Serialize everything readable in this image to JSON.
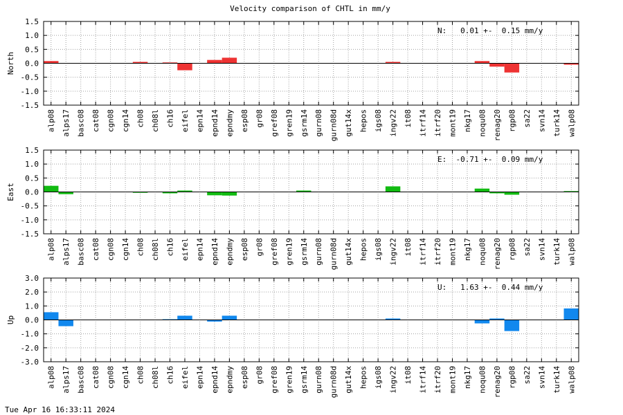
{
  "chart_data": {
    "type": "bar",
    "title": "Velocity comparison of CHTL in mm/y",
    "categories": [
      "alp08",
      "alps17",
      "basc08",
      "cat08",
      "cgn08",
      "cgn14",
      "ch08",
      "ch08l",
      "ch16",
      "eifel",
      "epn14",
      "epnd14",
      "epndmy",
      "esp08",
      "gr08",
      "gref08",
      "gren19",
      "gsrm14",
      "gurn08",
      "gurn08d",
      "gut14x",
      "hepos",
      "igs08",
      "ingv22",
      "it08",
      "itrf14",
      "itrf20",
      "mont19",
      "nkg17",
      "noqu08",
      "renag20",
      "rgp08",
      "sa22",
      "svn14",
      "turk14",
      "walp08"
    ],
    "panels": [
      {
        "name": "North",
        "ylabel": "North",
        "color": "#ee3333",
        "ylim": [
          -1.5,
          1.5
        ],
        "yticks": [
          "1.5",
          "1.0",
          "0.5",
          "0.0",
          "-0.5",
          "-1.0",
          "-1.5"
        ],
        "ytick_values": [
          1.5,
          1.0,
          0.5,
          0.0,
          -0.5,
          -1.0,
          -1.5
        ],
        "stat": "N:   0.01 +-  0.15 mm/y",
        "values": [
          0.08,
          0,
          0,
          0,
          0,
          0,
          0.05,
          0,
          0.03,
          -0.25,
          0,
          0.12,
          0.2,
          0,
          0,
          0,
          0,
          0,
          0,
          0,
          0,
          0,
          0,
          0.05,
          0,
          0,
          0,
          0,
          0,
          0.08,
          -0.12,
          -0.33,
          0,
          0,
          0,
          -0.05
        ]
      },
      {
        "name": "East",
        "ylabel": "East",
        "color": "#11bb11",
        "ylim": [
          -1.5,
          1.5
        ],
        "yticks": [
          "1.5",
          "1.0",
          "0.5",
          "0.0",
          "-0.5",
          "-1.0",
          "-1.5"
        ],
        "ytick_values": [
          1.5,
          1.0,
          0.5,
          0.0,
          -0.5,
          -1.0,
          -1.5
        ],
        "stat": "E:  -0.71 +-  0.09 mm/y",
        "values": [
          0.22,
          -0.08,
          0,
          0,
          0,
          0,
          -0.03,
          0,
          -0.05,
          0.05,
          0,
          -0.12,
          -0.13,
          0,
          0,
          0,
          0,
          0.05,
          0,
          0,
          0,
          0,
          0,
          0.2,
          0,
          0,
          0,
          0,
          0,
          0.12,
          -0.05,
          -0.1,
          0,
          0,
          0,
          0.03
        ]
      },
      {
        "name": "Up",
        "ylabel": "Up",
        "color": "#1188ee",
        "ylim": [
          -3.0,
          3.0
        ],
        "yticks": [
          "3.0",
          "2.0",
          "1.0",
          "0.0",
          "-1.0",
          "-2.0",
          "-3.0"
        ],
        "ytick_values": [
          3.0,
          2.0,
          1.0,
          0.0,
          -1.0,
          -2.0,
          -3.0
        ],
        "stat": "U:   1.63 +-  0.44 mm/y",
        "values": [
          0.55,
          -0.45,
          0,
          0,
          0,
          0,
          0,
          0,
          0.05,
          0.3,
          0,
          -0.12,
          0.3,
          0,
          0,
          0,
          0,
          0,
          0,
          0,
          0,
          0,
          0,
          0.1,
          0,
          0,
          0,
          0,
          0,
          -0.25,
          0.1,
          -0.8,
          0,
          0,
          0,
          0.82
        ]
      }
    ],
    "grid": true
  },
  "footer": {
    "timestamp": "Tue Apr 16 16:33:11 2024"
  }
}
